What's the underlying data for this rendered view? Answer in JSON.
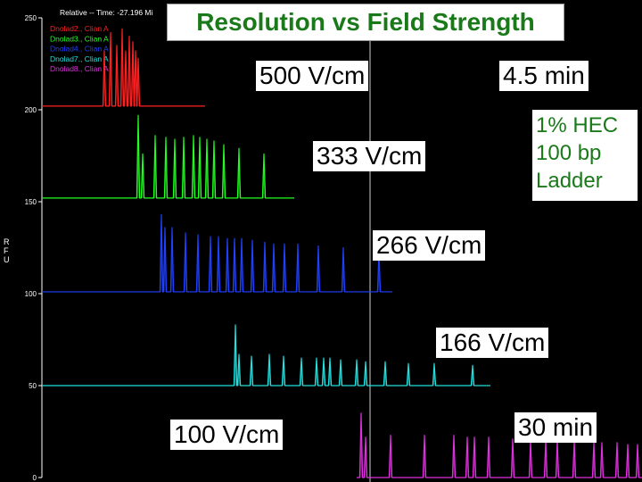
{
  "chart_data": {
    "type": "line",
    "title": "Resolution vs Field Strength",
    "header": "Relative -- Time: -27.196 Mi",
    "ylabel": "RFU",
    "ylim": [
      0,
      250
    ],
    "yticks": [
      0,
      50,
      100,
      150,
      200,
      250
    ],
    "grid": false,
    "legend_position": "top-left",
    "legend": [
      {
        "name": "Dnolad2., Clian A",
        "color": "#ff2020"
      },
      {
        "name": "Dnolad3., Clian A",
        "color": "#20ff20"
      },
      {
        "name": "Dnolad4., Clian A",
        "color": "#2040ff"
      },
      {
        "name": "Dnolad7., Clian A",
        "color": "#20e0e0"
      },
      {
        "name": "Dnolad8., Clian A",
        "color": "#e030e0"
      }
    ],
    "series": [
      {
        "name": "500 V/cm",
        "color": "#ff2020",
        "baseline": 202,
        "x_start": 47,
        "x_end": 230,
        "peaks": [
          [
            117,
            30
          ],
          [
            124,
            40
          ],
          [
            131,
            33
          ],
          [
            137,
            42
          ],
          [
            141,
            30
          ],
          [
            145,
            38
          ],
          [
            149,
            35
          ],
          [
            152,
            30
          ],
          [
            155,
            26
          ]
        ]
      },
      {
        "name": "333 V/cm",
        "color": "#20ff20",
        "baseline": 152,
        "x_start": 47,
        "x_end": 330,
        "peaks": [
          [
            155,
            45
          ],
          [
            160,
            24
          ],
          [
            174,
            34
          ],
          [
            186,
            33
          ],
          [
            196,
            32
          ],
          [
            206,
            33
          ],
          [
            217,
            34
          ],
          [
            224,
            33
          ],
          [
            232,
            32
          ],
          [
            240,
            31
          ],
          [
            251,
            29
          ],
          [
            268,
            27
          ],
          [
            296,
            24
          ]
        ]
      },
      {
        "name": "266 V/cm",
        "color": "#2040ff",
        "baseline": 101,
        "x_start": 47,
        "x_end": 440,
        "peaks": [
          [
            181,
            42
          ],
          [
            185,
            35
          ],
          [
            193,
            35
          ],
          [
            208,
            32
          ],
          [
            222,
            31
          ],
          [
            236,
            30
          ],
          [
            245,
            30
          ],
          [
            255,
            29
          ],
          [
            263,
            29
          ],
          [
            271,
            29
          ],
          [
            283,
            28
          ],
          [
            297,
            27
          ],
          [
            307,
            26
          ],
          [
            319,
            26
          ],
          [
            334,
            26
          ],
          [
            357,
            25
          ],
          [
            385,
            24
          ],
          [
            425,
            22
          ]
        ]
      },
      {
        "name": "166 V/cm",
        "color": "#20e0e0",
        "baseline": 50,
        "x_start": 47,
        "x_end": 550,
        "peaks": [
          [
            264,
            33
          ],
          [
            268,
            17
          ],
          [
            282,
            16
          ],
          [
            302,
            17
          ],
          [
            318,
            16
          ],
          [
            338,
            15
          ],
          [
            355,
            15
          ],
          [
            363,
            15
          ],
          [
            370,
            15
          ],
          [
            382,
            14
          ],
          [
            400,
            14
          ],
          [
            410,
            13
          ],
          [
            432,
            13
          ],
          [
            458,
            12
          ],
          [
            487,
            12
          ],
          [
            530,
            11
          ]
        ]
      },
      {
        "name": "100 V/cm",
        "color": "#e030e0",
        "baseline": 0,
        "x_start": 400,
        "x_end": 720,
        "peaks": [
          [
            405,
            35
          ],
          [
            410,
            22
          ],
          [
            438,
            23
          ],
          [
            476,
            23
          ],
          [
            509,
            23
          ],
          [
            524,
            22
          ],
          [
            532,
            22
          ],
          [
            548,
            22
          ],
          [
            575,
            21
          ],
          [
            595,
            20
          ],
          [
            612,
            20
          ],
          [
            625,
            20
          ],
          [
            644,
            20
          ],
          [
            666,
            19
          ],
          [
            675,
            19
          ],
          [
            692,
            19
          ],
          [
            704,
            18
          ],
          [
            715,
            18
          ]
        ]
      }
    ],
    "annotations": {
      "label_500": "500 V/cm",
      "time_start": "4.5 min",
      "label_333": "333 V/cm",
      "note_line1": "1% HEC",
      "note_line2": "100 bp",
      "note_line3": "Ladder",
      "label_266": "266 V/cm",
      "label_166": "166 V/cm",
      "label_100": "100 V/cm",
      "time_end": "30 min"
    }
  }
}
